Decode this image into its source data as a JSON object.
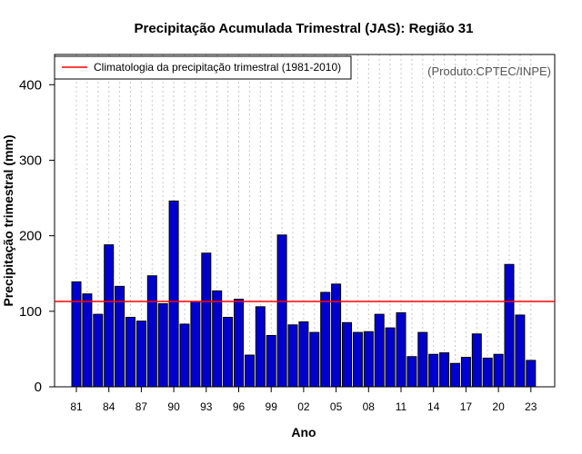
{
  "chart_data": {
    "type": "bar",
    "title": "Precipitação Acumulada Trimestral (JAS): Região 31",
    "xlabel": "Ano",
    "ylabel": "Precipitação trimestral (mm)",
    "source_note": "(Produto:CPTEC/INPE)",
    "legend_label": "Climatologia da precipitação trimestral (1981-2010)",
    "legend_position": "top-left",
    "ylim": [
      0,
      440
    ],
    "yticks": [
      0,
      100,
      200,
      300,
      400
    ],
    "xtick_labels": [
      "81",
      "84",
      "87",
      "90",
      "93",
      "96",
      "99",
      "02",
      "05",
      "08",
      "11",
      "14",
      "17",
      "20",
      "23"
    ],
    "climatology": 113,
    "years": [
      1981,
      1982,
      1983,
      1984,
      1985,
      1986,
      1987,
      1988,
      1989,
      1990,
      1991,
      1992,
      1993,
      1994,
      1995,
      1996,
      1997,
      1998,
      1999,
      2000,
      2001,
      2002,
      2003,
      2004,
      2005,
      2006,
      2007,
      2008,
      2009,
      2010,
      2011,
      2012,
      2013,
      2014,
      2015,
      2016,
      2017,
      2018,
      2019,
      2020,
      2021,
      2022,
      2023
    ],
    "values": [
      139,
      123,
      96,
      188,
      133,
      92,
      87,
      147,
      110,
      246,
      83,
      113,
      177,
      127,
      92,
      116,
      42,
      106,
      68,
      201,
      82,
      86,
      72,
      125,
      136,
      85,
      72,
      73,
      96,
      78,
      98,
      40,
      72,
      43,
      45,
      31,
      39,
      70,
      38,
      43,
      162,
      95,
      35
    ],
    "grid": "vertical dotted"
  },
  "colors": {
    "bar_fill": "#0000CD",
    "bar_stroke": "#000000",
    "climatology_line": "#FF0000",
    "grid": "#C8C8C8"
  }
}
